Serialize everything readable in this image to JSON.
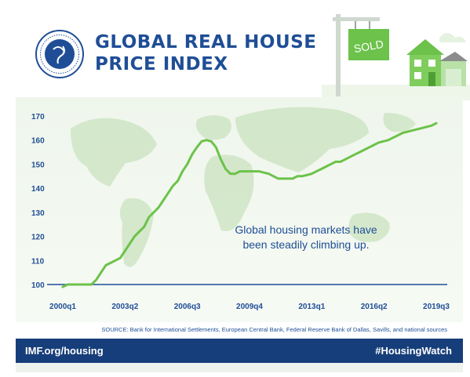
{
  "header": {
    "title_line1": "GLOBAL REAL HOUSE",
    "title_line2": "PRICE INDEX",
    "logo_text": "INTERNATIONAL MONETARY FUND",
    "sign_text": "SOLD"
  },
  "source_note": "SOURCE: Bank for International Settlements, European Central Bank, Federal Reserve Bank of Dallas, Savills, and national sources",
  "footer": {
    "left": "IMF.org/housing",
    "right": "#HousingWatch"
  },
  "colors": {
    "brand_blue": "#1f4e96",
    "footer_blue": "#163e7a",
    "line_green": "#6cc24a",
    "map_green": "#cfe5c5"
  },
  "chart_data": {
    "type": "line",
    "title": "GLOBAL REAL HOUSE PRICE INDEX",
    "xlabel": "",
    "ylabel": "",
    "ylim": [
      100,
      170
    ],
    "yticks": [
      100,
      110,
      120,
      130,
      140,
      150,
      160,
      170
    ],
    "xtick_labels": [
      "2000q1",
      "2003q2",
      "2006q3",
      "2009q4",
      "2013q1",
      "2016q2",
      "2019q3"
    ],
    "baseline": 100,
    "grid": false,
    "annotation_line1": "Global housing markets have",
    "annotation_line2": "been steadily climbing up.",
    "x": [
      "2000q1",
      "2000q2",
      "2000q3",
      "2000q4",
      "2001q1",
      "2001q2",
      "2001q3",
      "2001q4",
      "2002q1",
      "2002q2",
      "2002q3",
      "2002q4",
      "2003q1",
      "2003q2",
      "2003q3",
      "2003q4",
      "2004q1",
      "2004q2",
      "2004q3",
      "2004q4",
      "2005q1",
      "2005q2",
      "2005q3",
      "2005q4",
      "2006q1",
      "2006q2",
      "2006q3",
      "2006q4",
      "2007q1",
      "2007q2",
      "2007q3",
      "2007q4",
      "2008q1",
      "2008q2",
      "2008q3",
      "2008q4",
      "2009q1",
      "2009q2",
      "2009q3",
      "2009q4",
      "2010q1",
      "2010q2",
      "2010q3",
      "2010q4",
      "2011q1",
      "2011q2",
      "2011q3",
      "2011q4",
      "2012q1",
      "2012q2",
      "2012q3",
      "2012q4",
      "2013q1",
      "2013q2",
      "2013q3",
      "2013q4",
      "2014q1",
      "2014q2",
      "2014q3",
      "2014q4",
      "2015q1",
      "2015q2",
      "2015q3",
      "2015q4",
      "2016q1",
      "2016q2",
      "2016q3",
      "2016q4",
      "2017q1",
      "2017q2",
      "2017q3",
      "2017q4",
      "2018q1",
      "2018q2",
      "2018q3",
      "2018q4",
      "2019q1",
      "2019q2",
      "2019q3"
    ],
    "series": [
      {
        "values": [
          99,
          100,
          100,
          100,
          100,
          100,
          100,
          102,
          105,
          108,
          109,
          110,
          111,
          114,
          117,
          120,
          122,
          124,
          128,
          130,
          132,
          135,
          138,
          141,
          143,
          147,
          150,
          154,
          157,
          159.5,
          160,
          159.5,
          157,
          152,
          148,
          146,
          146,
          147,
          147,
          147,
          147,
          147,
          146.5,
          146,
          145,
          144,
          144,
          144,
          144,
          145,
          145,
          145.5,
          146,
          147,
          148,
          149,
          150,
          151,
          151,
          152,
          153,
          154,
          155,
          156,
          157,
          158,
          159,
          159.5,
          160,
          161,
          162,
          163,
          163.5,
          164,
          164.5,
          165,
          165.5,
          166,
          167
        ]
      }
    ]
  }
}
